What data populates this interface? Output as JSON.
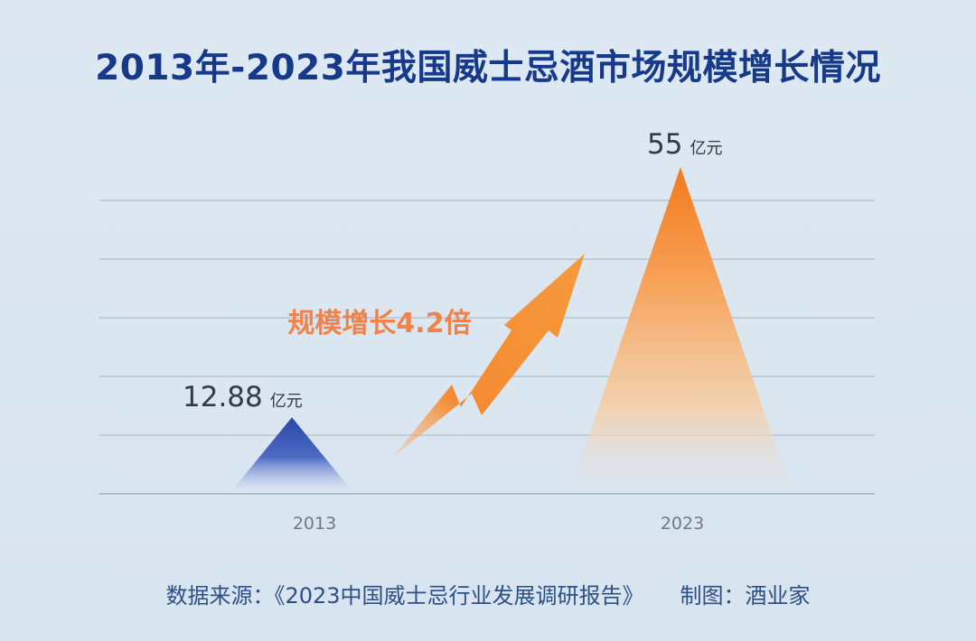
{
  "title": "2013年-2023年我国威士忌酒市场规模增长情况",
  "chart_data": {
    "type": "bar",
    "categories": [
      "2013",
      "2023"
    ],
    "values": [
      12.88,
      55
    ],
    "unit": "亿元",
    "value_labels": [
      "12.88",
      "55"
    ],
    "annotation": "规模增长4.2倍",
    "grid": true,
    "colors": {
      "2013": "#2f4fae",
      "2023": "#f4802a",
      "annotation": "#f0834a",
      "arrow": "#f47a1f"
    }
  },
  "footer": {
    "source": "数据来源：《2023中国威士忌行业发展调研报告》",
    "credit": "制图：酒业家"
  }
}
